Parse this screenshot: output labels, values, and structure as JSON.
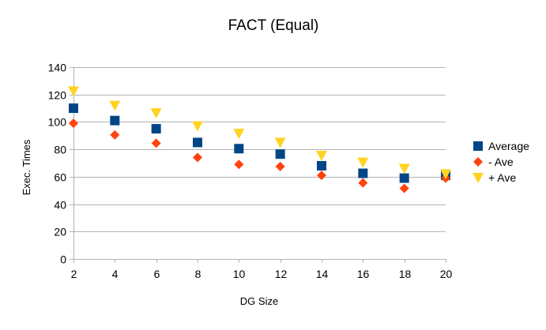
{
  "chart_data": {
    "type": "scatter",
    "title": "FACT (Equal)",
    "xlabel": "DG Size",
    "ylabel": "Exec. Times",
    "x": [
      2,
      4,
      6,
      8,
      10,
      12,
      14,
      16,
      18,
      20
    ],
    "xticks": [
      "2",
      "4",
      "6",
      "8",
      "10",
      "12",
      "14",
      "16",
      "18",
      "20"
    ],
    "yticks": [
      "0",
      "20",
      "40",
      "60",
      "80",
      "100",
      "120",
      "140"
    ],
    "xlim": [
      2,
      20
    ],
    "ylim": [
      0,
      140
    ],
    "grid": "horizontal",
    "legend": "right",
    "series": [
      {
        "name": "Average",
        "marker": "square",
        "color": "#004586",
        "values": [
          110,
          101,
          95,
          85,
          80.5,
          76.5,
          68,
          62.5,
          59,
          61
        ]
      },
      {
        "name": "- Ave",
        "marker": "diamond",
        "color": "#ff420e",
        "values": [
          99,
          90.5,
          84.5,
          74,
          69,
          67.5,
          61,
          55.5,
          51.5,
          59
        ]
      },
      {
        "name": "+ Ave",
        "marker": "triangle-down",
        "color": "#ffd320",
        "values": [
          122.5,
          112,
          106.5,
          97,
          91.5,
          85,
          75.5,
          70.5,
          66,
          62
        ]
      }
    ]
  }
}
